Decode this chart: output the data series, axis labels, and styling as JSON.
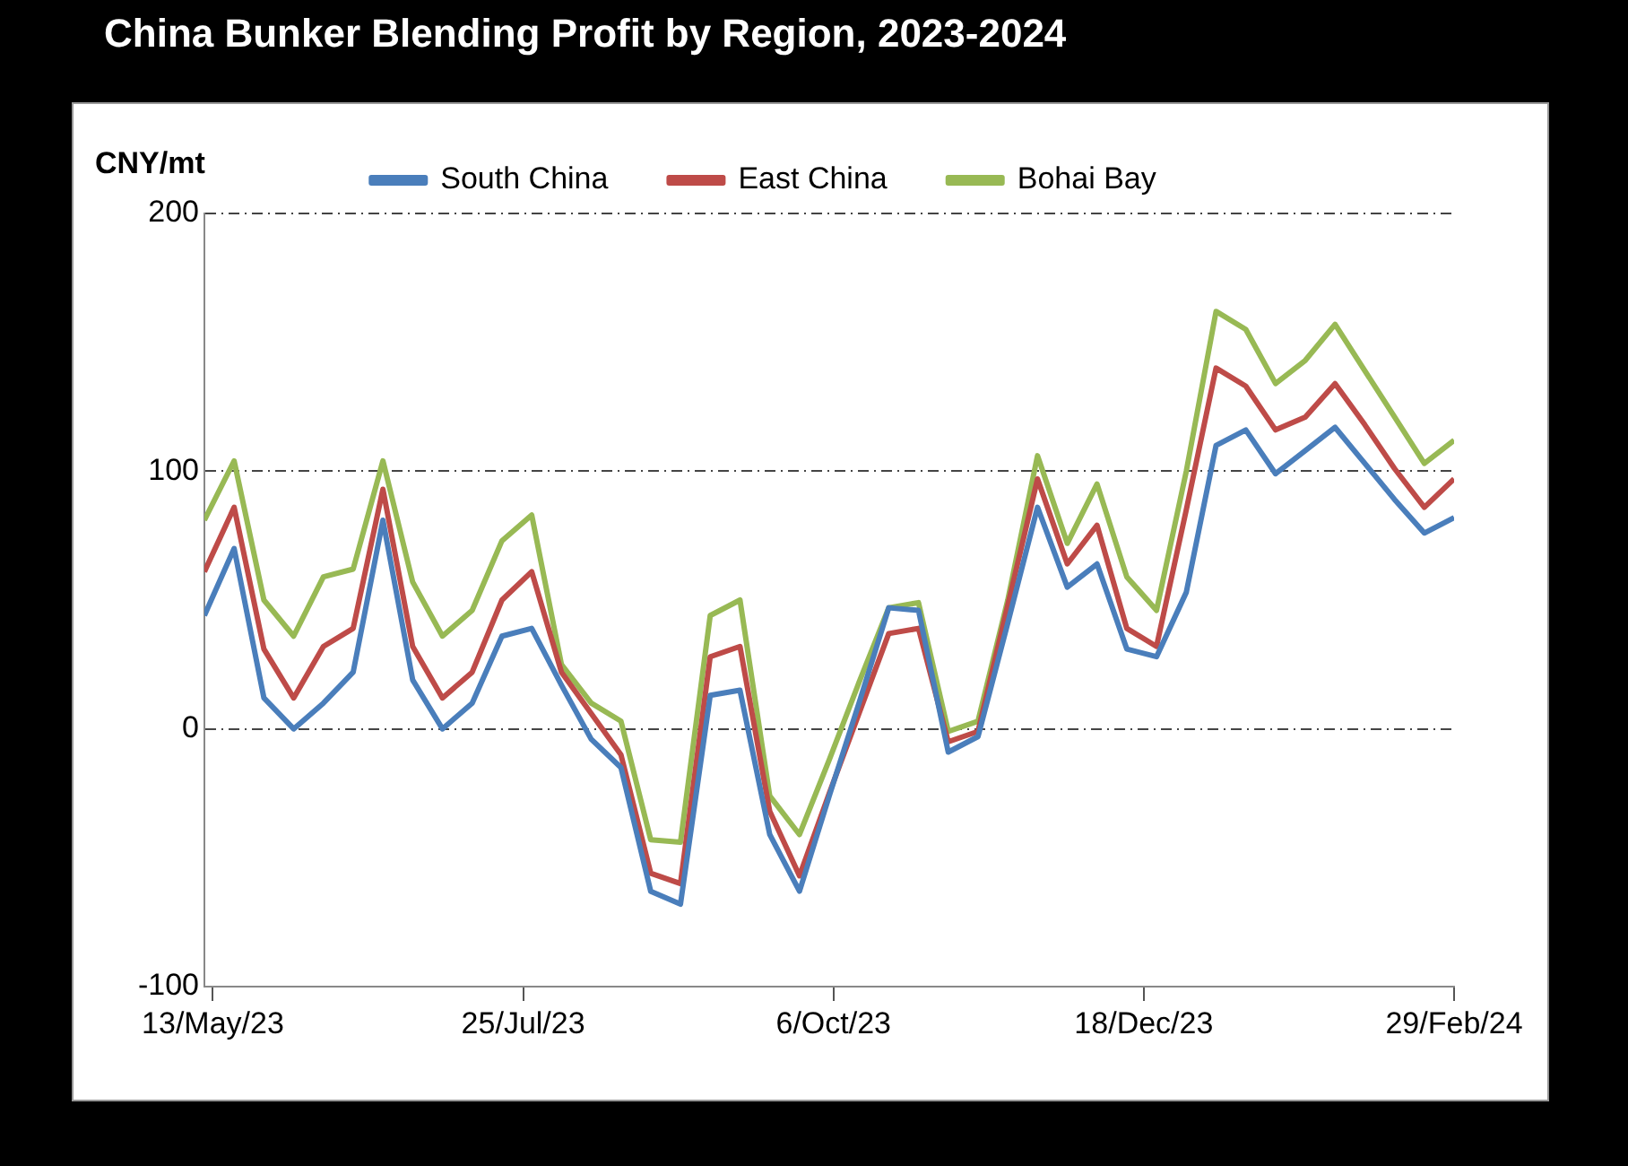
{
  "chart_data": {
    "type": "line",
    "title": "China Bunker Blending Profit by Region, 2023-2024",
    "ylabel": "CNY/mt",
    "x": [
      "2023-05-11",
      "2023-05-18",
      "2023-05-25",
      "2023-06-01",
      "2023-06-08",
      "2023-06-15",
      "2023-06-22",
      "2023-06-29",
      "2023-07-06",
      "2023-07-13",
      "2023-07-20",
      "2023-07-27",
      "2023-08-03",
      "2023-08-10",
      "2023-08-17",
      "2023-08-24",
      "2023-08-31",
      "2023-09-07",
      "2023-09-14",
      "2023-09-21",
      "2023-09-28",
      "2023-10-05",
      "2023-10-12",
      "2023-10-19",
      "2023-10-26",
      "2023-11-02",
      "2023-11-09",
      "2023-11-16",
      "2023-11-23",
      "2023-11-30",
      "2023-12-07",
      "2023-12-14",
      "2023-12-21",
      "2023-12-28",
      "2024-01-04",
      "2024-01-11",
      "2024-01-18",
      "2024-01-25",
      "2024-02-01",
      "2024-02-08",
      "2024-02-15",
      "2024-02-22",
      "2024-02-29"
    ],
    "series": [
      {
        "name": "South China",
        "color": "#4a7ebb",
        "values": [
          44,
          70,
          12,
          0,
          10,
          22,
          81,
          19,
          0,
          10,
          36,
          39,
          17,
          -4,
          -15,
          -63,
          -68,
          13,
          15,
          -41,
          -63,
          -26,
          10,
          47,
          46,
          -9,
          -3,
          41,
          86,
          55,
          64,
          31,
          28,
          53,
          110,
          116,
          99,
          108,
          117,
          103,
          89,
          76,
          82
        ]
      },
      {
        "name": "East China",
        "color": "#be4b48",
        "values": [
          61,
          86,
          31,
          12,
          32,
          39,
          93,
          32,
          12,
          22,
          50,
          61,
          22,
          6,
          -10,
          -56,
          -60,
          28,
          32,
          -32,
          -57,
          -25,
          6,
          37,
          39,
          -5,
          -1,
          48,
          97,
          64,
          79,
          39,
          32,
          85,
          140,
          133,
          116,
          121,
          134,
          118,
          101,
          86,
          97
        ]
      },
      {
        "name": "Bohai Bay",
        "color": "#98b954",
        "values": [
          81,
          104,
          50,
          36,
          59,
          62,
          104,
          57,
          36,
          46,
          73,
          83,
          25,
          10,
          3,
          -43,
          -44,
          44,
          50,
          -26,
          -41,
          -12,
          18,
          47,
          49,
          -1,
          3,
          50,
          106,
          72,
          95,
          59,
          46,
          100,
          162,
          155,
          134,
          143,
          157,
          139,
          121,
          103,
          112
        ]
      }
    ],
    "xlim": [
      "2023-05-11",
      "2024-02-29"
    ],
    "xticks": [
      {
        "value": "2023-05-13",
        "label": "13/May/23"
      },
      {
        "value": "2023-07-25",
        "label": "25/Jul/23"
      },
      {
        "value": "2023-10-06",
        "label": "6/Oct/23"
      },
      {
        "value": "2023-12-18",
        "label": "18/Dec/23"
      },
      {
        "value": "2024-02-29",
        "label": "29/Feb/24"
      }
    ],
    "ylim": [
      -100,
      200
    ],
    "yticks": [
      -100,
      0,
      100,
      200
    ],
    "grid": "y",
    "legend": "top",
    "marker": "none",
    "line_style": "solid"
  }
}
